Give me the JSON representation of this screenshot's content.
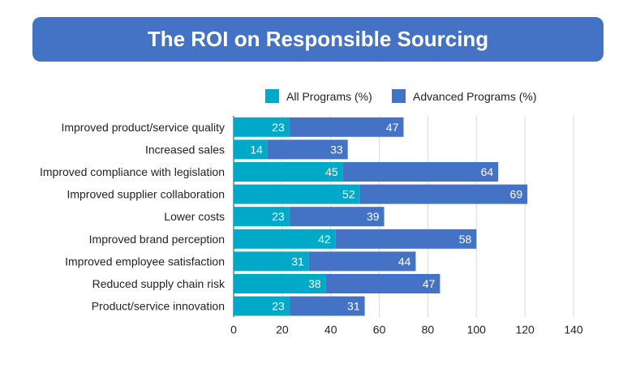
{
  "chart_data": {
    "type": "bar",
    "orientation": "horizontal",
    "stacked": true,
    "title": "The ROI on Responsible Sourcing",
    "categories": [
      "Improved product/service quality",
      "Increased sales",
      "Improved compliance with legislation",
      "Improved supplier collaboration",
      "Lower costs",
      "Improved brand perception",
      "Improved employee satisfaction",
      "Reduced supply chain risk",
      "Product/service innovation"
    ],
    "series": [
      {
        "name": "All Programs (%)",
        "color": "#00a9c8",
        "values": [
          23,
          14,
          45,
          52,
          23,
          42,
          31,
          38,
          23
        ]
      },
      {
        "name": "Advanced Programs (%)",
        "color": "#4472c4",
        "values": [
          47,
          33,
          64,
          69,
          39,
          58,
          44,
          47,
          31
        ]
      }
    ],
    "xlim": [
      0,
      140
    ],
    "xticks": [
      0,
      20,
      40,
      60,
      80,
      100,
      120,
      140
    ],
    "grid": true,
    "legend": "top",
    "data_labels": true
  }
}
